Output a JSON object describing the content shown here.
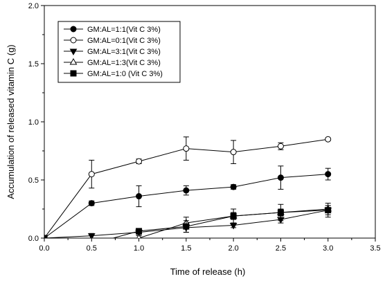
{
  "chart_data": {
    "type": "line",
    "xlabel": "Time of release (h)",
    "ylabel": "Accumulation of released vitamin C (g)",
    "xlim": [
      0,
      3.5
    ],
    "ylim": [
      0,
      2.0
    ],
    "x_ticks": [
      "0.0",
      "0.5",
      "1.0",
      "1.5",
      "2.0",
      "2.5",
      "3.0",
      "3.5"
    ],
    "y_ticks": [
      "0.0",
      "0.5",
      "1.0",
      "1.5",
      "2.0"
    ],
    "grid": false,
    "legend_position": "top-left",
    "x": [
      0,
      0.5,
      1.0,
      1.5,
      2.0,
      2.5,
      3.0
    ],
    "series": [
      {
        "name": "GM:AL=1:1(Vit C 3%)",
        "marker": "filled-circle",
        "values": [
          0.0,
          0.3,
          0.36,
          0.41,
          0.44,
          0.52,
          0.55
        ],
        "errors": [
          0.0,
          0.02,
          0.09,
          0.04,
          0.02,
          0.1,
          0.05
        ]
      },
      {
        "name": "GM:AL=0:1(Vit C 3%)",
        "marker": "open-circle",
        "values": [
          0.0,
          0.55,
          0.66,
          0.77,
          0.74,
          0.79,
          0.85
        ],
        "errors": [
          0.0,
          0.12,
          0.02,
          0.1,
          0.1,
          0.03,
          0.01
        ]
      },
      {
        "name": "GM:AL=3:1(Vit C 3%)",
        "marker": "filled-triangle-down",
        "values": [
          0.0,
          0.02,
          0.05,
          0.09,
          0.11,
          0.16,
          0.24
        ],
        "errors": [
          0.0,
          0.02,
          0.02,
          0.04,
          0.02,
          0.03,
          0.04
        ]
      },
      {
        "name": "GM:AL=1:3(Vit C 3%)",
        "marker": "open-triangle-up",
        "values": [
          0.0,
          -0.02,
          0.0,
          0.13,
          0.19,
          0.22,
          0.25
        ],
        "errors": [
          0.0,
          0.02,
          0.02,
          0.05,
          0.06,
          0.03,
          0.03
        ]
      },
      {
        "name": "GM:AL=1:0 (Vit C 3%)",
        "marker": "filled-square",
        "values": [
          0.0,
          -0.05,
          0.06,
          0.1,
          0.19,
          0.22,
          0.24
        ],
        "errors": [
          0.0,
          0.02,
          0.02,
          0.05,
          0.03,
          0.07,
          0.06
        ]
      }
    ]
  }
}
